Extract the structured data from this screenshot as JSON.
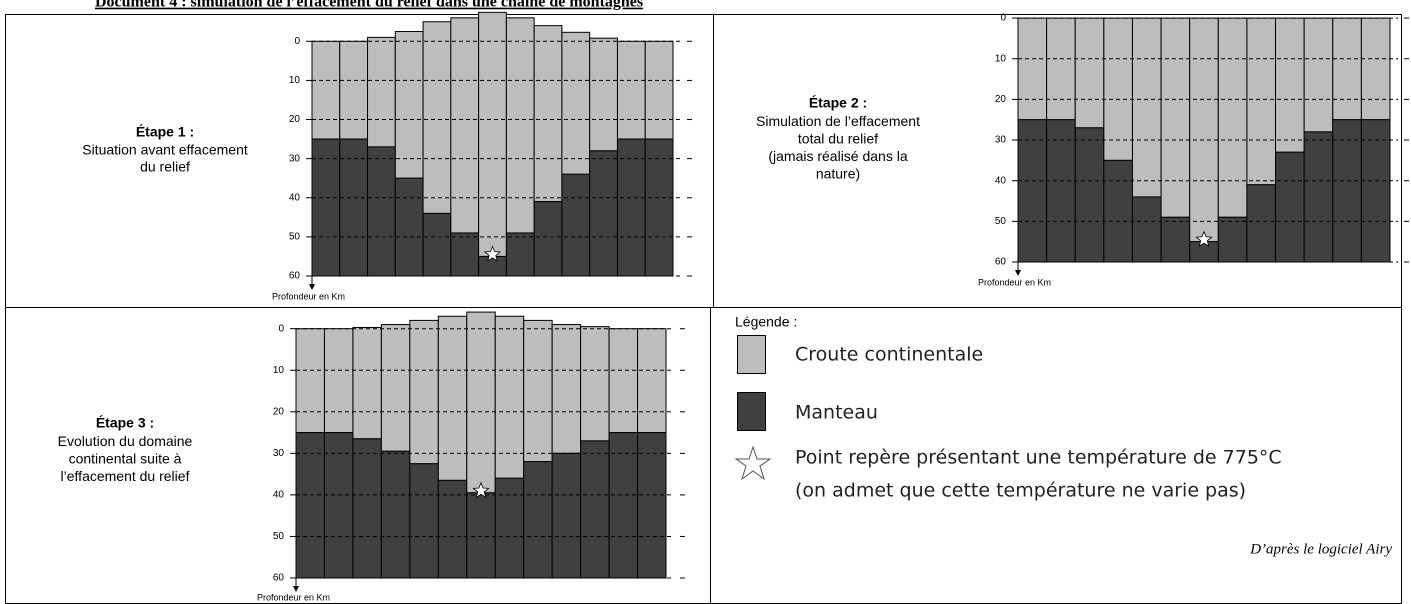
{
  "title": "Document 4 : simulation de l’effacement du relief dans une chaîne de montagnes",
  "steps": [
    {
      "label": "Étape 1 :",
      "lines": [
        "Situation avant effacement",
        "du relief"
      ]
    },
    {
      "label": "Étape 2 :",
      "lines": [
        "Simulation de l’effacement",
        "total du relief",
        "(jamais réalisé dans la",
        "nature)"
      ]
    },
    {
      "label": "Étape 3 :",
      "lines": [
        "Evolution du domaine",
        "continental suite à",
        "l’effacement du relief"
      ]
    }
  ],
  "chart_data": [
    {
      "type": "bar",
      "ylabel": "Profondeur en Km",
      "ylim": [
        60,
        -8
      ],
      "yticks": [
        0,
        10,
        20,
        30,
        40,
        50,
        60
      ],
      "crust_color": "#bdbdbd",
      "mantle_color": "#404040",
      "grid": true,
      "crust_top": [
        0,
        0,
        -1,
        -2.5,
        -5,
        -6,
        -7.4,
        -6,
        -4,
        -2.3,
        -0.8,
        0,
        0
      ],
      "moho": [
        25,
        25,
        27,
        35,
        44,
        49,
        55,
        49,
        41,
        34,
        28,
        25,
        25
      ],
      "star_depth": 55
    },
    {
      "type": "bar",
      "ylabel": "Profondeur en Km",
      "ylim": [
        60,
        -1
      ],
      "yticks": [
        0,
        10,
        20,
        30,
        40,
        50,
        60
      ],
      "crust_color": "#bdbdbd",
      "mantle_color": "#404040",
      "grid": true,
      "crust_top": [
        0,
        0,
        0,
        0,
        0,
        0,
        0,
        0,
        0,
        0,
        0,
        0,
        0
      ],
      "moho": [
        25,
        25,
        27,
        35,
        44,
        49,
        55,
        49,
        41,
        33,
        28,
        25,
        25
      ],
      "star_depth": 55
    },
    {
      "type": "bar",
      "ylabel": "Profondeur en Km",
      "ylim": [
        60,
        -4.5
      ],
      "yticks": [
        0,
        10,
        20,
        30,
        40,
        50,
        60
      ],
      "crust_color": "#bdbdbd",
      "mantle_color": "#404040",
      "grid": true,
      "crust_top": [
        0,
        0,
        -0.3,
        -1,
        -2,
        -3,
        -4,
        -3,
        -2,
        -1,
        -0.5,
        0,
        0
      ],
      "moho": [
        25,
        25,
        26.5,
        29.5,
        32.5,
        36.5,
        39.5,
        36,
        32,
        30,
        27,
        25,
        25
      ],
      "star_depth": 39.5
    }
  ],
  "legend": {
    "title": "Légende :",
    "crust": "Croute continentale",
    "mantle": "Manteau",
    "star_lines": [
      "Point repère présentant une température de 775°C",
      "(on admet que cette température ne varie pas)"
    ]
  },
  "source": "D’après le logiciel Airy"
}
